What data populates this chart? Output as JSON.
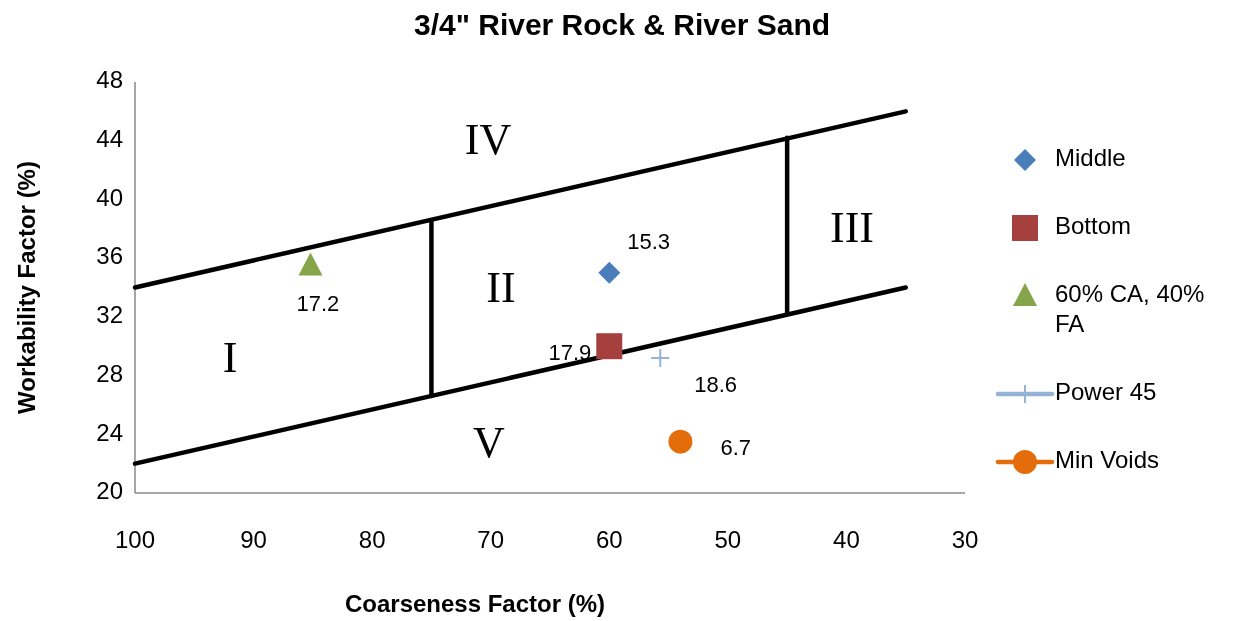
{
  "chart_data": {
    "type": "scatter",
    "title": "3/4\" River Rock & River Sand",
    "xlabel": "Coarseness Factor (%)",
    "ylabel": "Workability Factor (%)",
    "xlim": [
      100,
      30
    ],
    "xticks": [
      100,
      90,
      80,
      70,
      60,
      50,
      40,
      30
    ],
    "ylim": [
      20,
      48
    ],
    "yticks": [
      20,
      24,
      28,
      32,
      36,
      40,
      44,
      48
    ],
    "grid": false,
    "legend": "right",
    "series": [
      {
        "type": "line",
        "color": "#000000",
        "marker": "none",
        "x": [
          100,
          35
        ],
        "values": [
          34,
          46
        ]
      },
      {
        "type": "line",
        "color": "#000000",
        "marker": "none",
        "x": [
          100,
          35
        ],
        "values": [
          22,
          34
        ]
      },
      {
        "type": "line",
        "color": "#000000",
        "marker": "none",
        "x": [
          75,
          75
        ],
        "values": [
          26.6,
          38.6
        ]
      },
      {
        "type": "line",
        "color": "#000000",
        "marker": "none",
        "x": [
          45,
          45
        ],
        "values": [
          32.2,
          44.2
        ]
      },
      {
        "name": "Middle",
        "color": "#4a7ebb",
        "marker": "diamond",
        "x": [
          60
        ],
        "values": [
          35
        ]
      },
      {
        "name": "Bottom",
        "color": "#a5403e",
        "marker": "square",
        "x": [
          60
        ],
        "values": [
          30
        ]
      },
      {
        "name": "60% CA, 40% FA",
        "color": "#86a44a",
        "marker": "triangle",
        "x": [
          85.2
        ],
        "values": [
          35.5
        ]
      },
      {
        "name": "Power 45",
        "type": "line",
        "color": "#95b3d7",
        "marker": "cross",
        "x": [
          55.7
        ],
        "values": [
          29.2
        ]
      },
      {
        "name": "Min Voids",
        "type": "line",
        "color": "#e46c0a",
        "marker": "circle",
        "x": [
          54
        ],
        "values": [
          23.5
        ]
      }
    ],
    "annotations": [
      "I",
      "II",
      "III",
      "IV",
      "V",
      {
        "text": "15.3",
        "x": 60,
        "y": 35
      },
      {
        "text": "17.9",
        "x": 60,
        "y": 30
      },
      {
        "text": "17.2",
        "x": 85.2,
        "y": 35.5
      },
      {
        "text": "18.6",
        "x": 55.7,
        "y": 29.2
      },
      {
        "text": "6.7",
        "x": 54,
        "y": 23.5
      }
    ]
  }
}
